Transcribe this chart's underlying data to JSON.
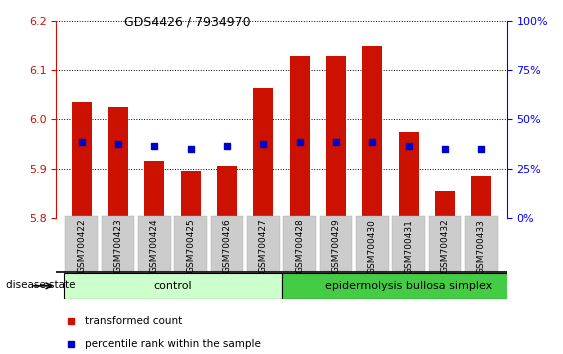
{
  "title": "GDS4426 / 7934970",
  "samples": [
    "GSM700422",
    "GSM700423",
    "GSM700424",
    "GSM700425",
    "GSM700426",
    "GSM700427",
    "GSM700428",
    "GSM700429",
    "GSM700430",
    "GSM700431",
    "GSM700432",
    "GSM700433"
  ],
  "bar_base": 5.8,
  "bar_tops": [
    6.035,
    6.025,
    5.915,
    5.895,
    5.905,
    6.065,
    6.13,
    6.13,
    6.15,
    5.975,
    5.855,
    5.885
  ],
  "percentile_values": [
    5.955,
    5.95,
    5.945,
    5.94,
    5.945,
    5.95,
    5.955,
    5.955,
    5.955,
    5.945,
    5.94,
    5.94
  ],
  "ylim_left": [
    5.8,
    6.2
  ],
  "ylim_right": [
    0,
    100
  ],
  "yticks_left": [
    5.8,
    5.9,
    6.0,
    6.1,
    6.2
  ],
  "yticks_right": [
    0,
    25,
    50,
    75,
    100
  ],
  "bar_color": "#cc1100",
  "percentile_color": "#0000cc",
  "control_color": "#ccffcc",
  "ebs_color": "#44cc44",
  "control_label": "control",
  "ebs_label": "epidermolysis bullosa simplex",
  "disease_state_label": "disease state",
  "legend_bar": "transformed count",
  "legend_pct": "percentile rank within the sample",
  "control_samples": 6,
  "ebs_samples": 6,
  "background_color": "#ffffff",
  "tick_label_bg": "#cccccc"
}
